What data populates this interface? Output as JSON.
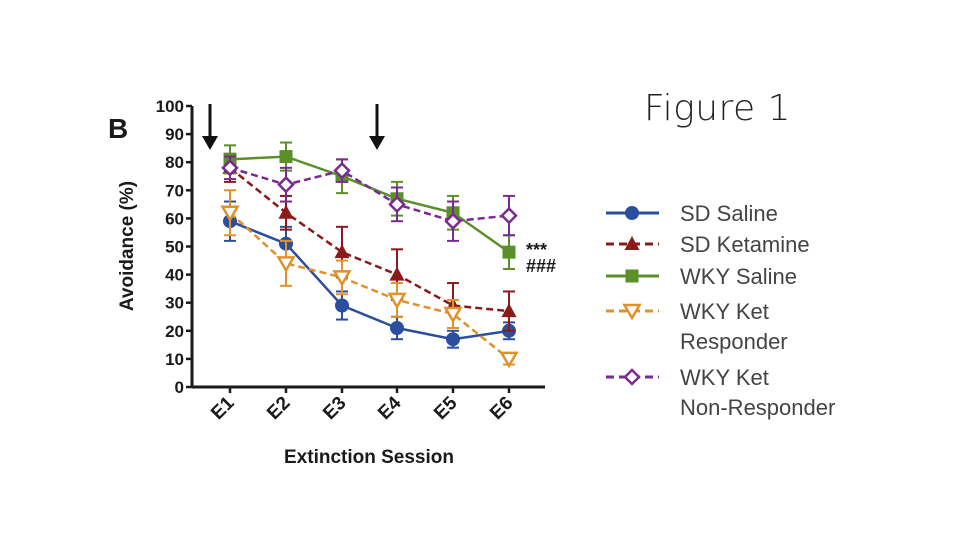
{
  "slide_title": "Figure 1",
  "chart_data": {
    "type": "line",
    "panel_label": "B",
    "xlabel": "Extinction Session",
    "ylabel": "Avoidance (%)",
    "categories": [
      "E1",
      "E2",
      "E3",
      "E4",
      "E5",
      "E6"
    ],
    "ylim": [
      0,
      100
    ],
    "yticks": [
      0,
      10,
      20,
      30,
      40,
      50,
      60,
      70,
      80,
      90,
      100
    ],
    "grid": false,
    "arrows_at": [
      "E1",
      "E4"
    ],
    "significance": [
      "***",
      "###"
    ],
    "series": [
      {
        "name": "SD Saline",
        "legend_label": [
          "SD Saline"
        ],
        "color": "#2b4f9c",
        "marker": "circle",
        "dashed": false,
        "values": [
          59,
          51,
          29,
          21,
          17,
          20
        ],
        "errors": [
          7,
          6,
          5,
          4,
          3,
          3
        ]
      },
      {
        "name": "SD Ketamine",
        "legend_label": [
          "SD Ketamine"
        ],
        "color": "#8b1a1a",
        "marker": "triangle",
        "dashed": true,
        "values": [
          78,
          62,
          48,
          40,
          29,
          27
        ],
        "errors": [
          5,
          6,
          9,
          9,
          8,
          7
        ]
      },
      {
        "name": "WKY Saline",
        "legend_label": [
          "WKY Saline"
        ],
        "color": "#5a8f29",
        "marker": "square",
        "dashed": false,
        "values": [
          81,
          82,
          75,
          67,
          62,
          48
        ],
        "errors": [
          5,
          5,
          6,
          6,
          6,
          6
        ]
      },
      {
        "name": "WKY Ket Responder",
        "legend_label": [
          "WKY Ket",
          "Responder"
        ],
        "color": "#e0922a",
        "marker": "triangle-down-open",
        "dashed": true,
        "values": [
          62,
          44,
          39,
          31,
          26,
          10
        ],
        "errors": [
          8,
          8,
          6,
          6,
          5,
          2
        ]
      },
      {
        "name": "WKY Ket Non-Responder",
        "legend_label": [
          "WKY Ket",
          "Non-Responder"
        ],
        "color": "#7b2a8f",
        "marker": "diamond-open",
        "dashed": true,
        "values": [
          78,
          72,
          77,
          65,
          59,
          61
        ],
        "errors": [
          4,
          6,
          4,
          6,
          7,
          7
        ]
      }
    ]
  }
}
